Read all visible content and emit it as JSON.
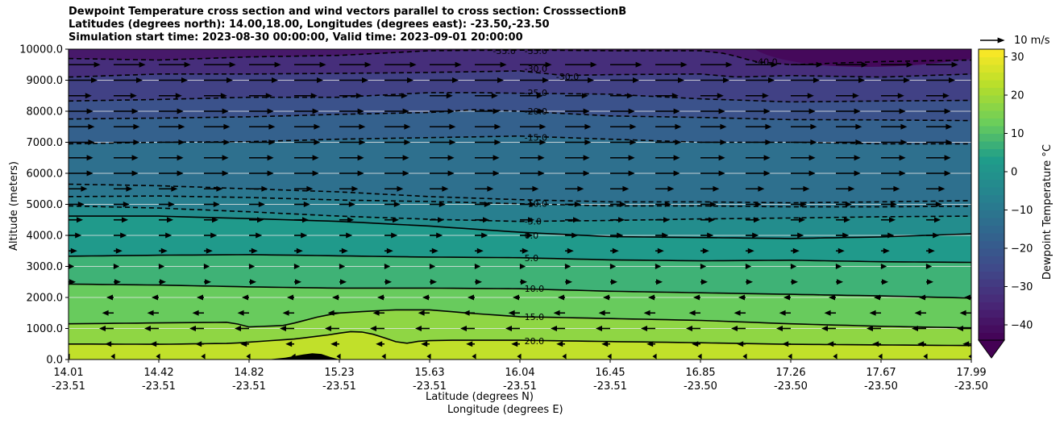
{
  "chart_data": {
    "type": "contour",
    "title_lines": [
      "Dewpoint Temperature cross section and wind vectors parallel to cross section: CrosssectionB",
      "Latitudes (degrees north): 14.00,18.00, Longitudes (degrees east): -23.50,-23.50",
      "Simulation start time: 2023-08-30 00:00:00, Valid time: 2023-09-01 20:00:00"
    ],
    "xlabel_line1": "Latitude (degrees N)",
    "xlabel_line2": "Longitude (degrees E)",
    "ylabel": "Altitude (meters)",
    "ylim": [
      0,
      10000
    ],
    "xlim": [
      0,
      1
    ],
    "x_ticks": [
      {
        "frac": 0.0,
        "lat": "14.01",
        "lon": "-23.51"
      },
      {
        "frac": 0.1,
        "lat": "14.42",
        "lon": "-23.51"
      },
      {
        "frac": 0.2,
        "lat": "14.82",
        "lon": "-23.51"
      },
      {
        "frac": 0.3,
        "lat": "15.23",
        "lon": "-23.51"
      },
      {
        "frac": 0.4,
        "lat": "15.63",
        "lon": "-23.51"
      },
      {
        "frac": 0.5,
        "lat": "16.04",
        "lon": "-23.51"
      },
      {
        "frac": 0.6,
        "lat": "16.45",
        "lon": "-23.51"
      },
      {
        "frac": 0.7,
        "lat": "16.85",
        "lon": "-23.50"
      },
      {
        "frac": 0.8,
        "lat": "17.26",
        "lon": "-23.50"
      },
      {
        "frac": 0.9,
        "lat": "17.67",
        "lon": "-23.50"
      },
      {
        "frac": 1.0,
        "lat": "17.99",
        "lon": "-23.50"
      }
    ],
    "y_ticks": [
      {
        "value": 0,
        "label": "0.0"
      },
      {
        "value": 1000,
        "label": "1000.0"
      },
      {
        "value": 2000,
        "label": "2000.0"
      },
      {
        "value": 3000,
        "label": "3000.0"
      },
      {
        "value": 4000,
        "label": "4000.0"
      },
      {
        "value": 5000,
        "label": "5000.0"
      },
      {
        "value": 6000,
        "label": "6000.0"
      },
      {
        "value": 7000,
        "label": "7000.0"
      },
      {
        "value": 8000,
        "label": "8000.0"
      },
      {
        "value": 9000,
        "label": "9000.0"
      },
      {
        "value": 10000,
        "label": "10000.0"
      }
    ],
    "grid": true,
    "colorbar": {
      "label": "Dewpoint Temperature $^\\circ$C",
      "label_text": "Dewpoint Temperature °C",
      "min": -44,
      "max": 32,
      "extend": "min",
      "ticks": [
        {
          "value": 30,
          "label": "30"
        },
        {
          "value": 20,
          "label": "20"
        },
        {
          "value": 10,
          "label": "10"
        },
        {
          "value": 0,
          "label": "0"
        },
        {
          "value": -10,
          "label": "−10"
        },
        {
          "value": -20,
          "label": "−20"
        },
        {
          "value": -30,
          "label": "−30"
        },
        {
          "value": -40,
          "label": "−40"
        }
      ]
    },
    "contours": [
      {
        "level": "20.0",
        "dashed": false,
        "points": [
          [
            0,
            500
          ],
          [
            0.1,
            490
          ],
          [
            0.18,
            520
          ],
          [
            0.25,
            660
          ],
          [
            0.29,
            800
          ],
          [
            0.31,
            900
          ],
          [
            0.33,
            880
          ],
          [
            0.35,
            700
          ],
          [
            0.37,
            500
          ],
          [
            0.39,
            600
          ],
          [
            0.42,
            620
          ],
          [
            0.5,
            620
          ],
          [
            0.6,
            580
          ],
          [
            0.7,
            540
          ],
          [
            0.8,
            490
          ],
          [
            0.9,
            470
          ],
          [
            1,
            450
          ]
        ],
        "label": {
          "x": 0.5,
          "y": 600
        }
      },
      {
        "level": "15.0",
        "dashed": false,
        "points": [
          [
            0,
            1150
          ],
          [
            0.1,
            1180
          ],
          [
            0.18,
            1200
          ],
          [
            0.2,
            1050
          ],
          [
            0.24,
            1100
          ],
          [
            0.28,
            1400
          ],
          [
            0.3,
            1500
          ],
          [
            0.36,
            1600
          ],
          [
            0.4,
            1600
          ],
          [
            0.45,
            1480
          ],
          [
            0.5,
            1380
          ],
          [
            0.6,
            1320
          ],
          [
            0.7,
            1260
          ],
          [
            0.8,
            1150
          ],
          [
            0.9,
            1070
          ],
          [
            1,
            1020
          ]
        ],
        "label": {
          "x": 0.5,
          "y": 1380
        }
      },
      {
        "level": "10.0",
        "dashed": false,
        "points": [
          [
            0,
            2430
          ],
          [
            0.1,
            2400
          ],
          [
            0.2,
            2340
          ],
          [
            0.3,
            2300
          ],
          [
            0.4,
            2300
          ],
          [
            0.5,
            2280
          ],
          [
            0.6,
            2200
          ],
          [
            0.7,
            2150
          ],
          [
            0.8,
            2100
          ],
          [
            0.9,
            2050
          ],
          [
            1,
            1980
          ]
        ],
        "label": {
          "x": 0.5,
          "y": 2280
        }
      },
      {
        "level": "5.0",
        "dashed": false,
        "points": [
          [
            0,
            3330
          ],
          [
            0.1,
            3360
          ],
          [
            0.2,
            3380
          ],
          [
            0.3,
            3340
          ],
          [
            0.4,
            3300
          ],
          [
            0.5,
            3280
          ],
          [
            0.6,
            3210
          ],
          [
            0.7,
            3180
          ],
          [
            0.8,
            3200
          ],
          [
            0.9,
            3150
          ],
          [
            1,
            3130
          ]
        ],
        "label": {
          "x": 0.5,
          "y": 3270
        }
      },
      {
        "level": "0.0",
        "dashed": false,
        "points": [
          [
            0,
            4620
          ],
          [
            0.1,
            4620
          ],
          [
            0.2,
            4540
          ],
          [
            0.3,
            4450
          ],
          [
            0.4,
            4300
          ],
          [
            0.5,
            4100
          ],
          [
            0.6,
            3960
          ],
          [
            0.7,
            3930
          ],
          [
            0.8,
            3900
          ],
          [
            0.9,
            3950
          ],
          [
            1,
            4050
          ]
        ],
        "label": {
          "x": 0.5,
          "y": 4000
        }
      },
      {
        "level": "-5.0",
        "dashed": true,
        "points": [
          [
            0,
            4950
          ],
          [
            0.1,
            4880
          ],
          [
            0.2,
            4760
          ],
          [
            0.3,
            4620
          ],
          [
            0.4,
            4520
          ],
          [
            0.5,
            4450
          ],
          [
            0.6,
            4480
          ],
          [
            0.7,
            4530
          ],
          [
            0.8,
            4560
          ],
          [
            0.9,
            4600
          ],
          [
            1,
            4620
          ]
        ],
        "label": {
          "x": 0.5,
          "y": 4450
        }
      },
      {
        "level": "-10.0",
        "dashed": true,
        "points": [
          [
            0,
            5250
          ],
          [
            0.1,
            5270
          ],
          [
            0.2,
            5220
          ],
          [
            0.3,
            5140
          ],
          [
            0.4,
            5090
          ],
          [
            0.5,
            5020
          ],
          [
            0.6,
            4950
          ],
          [
            0.7,
            4950
          ],
          [
            0.8,
            4920
          ],
          [
            0.9,
            4920
          ],
          [
            1,
            4940
          ]
        ],
        "label": {
          "x": 0.5,
          "y": 5020
        }
      },
      {
        "level": "-10.0",
        "dashed": true,
        "points": [
          [
            0,
            5650
          ],
          [
            0.1,
            5600
          ],
          [
            0.2,
            5500
          ],
          [
            0.3,
            5400
          ],
          [
            0.4,
            5250
          ],
          [
            0.5,
            5150
          ],
          [
            0.6,
            5080
          ],
          [
            0.7,
            5080
          ],
          [
            0.8,
            5050
          ],
          [
            0.9,
            5080
          ],
          [
            1,
            5120
          ]
        ],
        "label": null
      },
      {
        "level": "-15.0",
        "dashed": true,
        "points": [
          [
            0,
            6950
          ],
          [
            0.1,
            7000
          ],
          [
            0.2,
            7020
          ],
          [
            0.3,
            7100
          ],
          [
            0.4,
            7150
          ],
          [
            0.5,
            7200
          ],
          [
            0.6,
            7100
          ],
          [
            0.7,
            7000
          ],
          [
            0.8,
            7000
          ],
          [
            0.9,
            6950
          ],
          [
            1,
            6950
          ]
        ],
        "label": {
          "x": 0.5,
          "y": 7150
        }
      },
      {
        "level": "-20.0",
        "dashed": true,
        "points": [
          [
            0,
            7750
          ],
          [
            0.1,
            7780
          ],
          [
            0.2,
            7820
          ],
          [
            0.3,
            7900
          ],
          [
            0.4,
            7960
          ],
          [
            0.45,
            8050
          ],
          [
            0.5,
            8000
          ],
          [
            0.6,
            7850
          ],
          [
            0.7,
            7800
          ],
          [
            0.8,
            7730
          ],
          [
            0.9,
            7720
          ],
          [
            1,
            7700
          ]
        ],
        "label": {
          "x": 0.5,
          "y": 8000
        }
      },
      {
        "level": "-25.0",
        "dashed": true,
        "points": [
          [
            0,
            8330
          ],
          [
            0.1,
            8380
          ],
          [
            0.2,
            8450
          ],
          [
            0.3,
            8450
          ],
          [
            0.4,
            8600
          ],
          [
            0.45,
            8600
          ],
          [
            0.5,
            8580
          ],
          [
            0.6,
            8550
          ],
          [
            0.7,
            8400
          ],
          [
            0.8,
            8300
          ],
          [
            0.9,
            8330
          ],
          [
            1,
            8350
          ]
        ],
        "label": {
          "x": 0.5,
          "y": 8600
        }
      },
      {
        "level": "-30.0",
        "dashed": true,
        "points": [
          [
            0,
            9100
          ],
          [
            0.1,
            9200
          ],
          [
            0.2,
            9200
          ],
          [
            0.3,
            9220
          ],
          [
            0.4,
            9250
          ],
          [
            0.5,
            9300
          ],
          [
            0.55,
            9150
          ],
          [
            0.6,
            9180
          ],
          [
            0.7,
            9200
          ],
          [
            0.74,
            9100
          ],
          [
            0.8,
            9150
          ],
          [
            0.9,
            9100
          ],
          [
            1,
            9200
          ]
        ],
        "label": {
          "x": 0.5,
          "y": 9380
        }
      },
      {
        "level": "-35.0",
        "dashed": true,
        "points": [
          [
            0,
            9700
          ],
          [
            0.1,
            9650
          ],
          [
            0.2,
            9750
          ],
          [
            0.3,
            9800
          ],
          [
            0.4,
            9950
          ],
          [
            0.5,
            9970
          ],
          [
            0.6,
            9950
          ],
          [
            0.7,
            9950
          ],
          [
            0.73,
            9850
          ],
          [
            0.76,
            9600
          ],
          [
            0.8,
            9500
          ],
          [
            0.9,
            9600
          ],
          [
            1,
            9650
          ]
        ],
        "label": {
          "x": 0.5,
          "y": 9950
        }
      }
    ],
    "contour_label_extras": [
      {
        "text": "-35.0",
        "x": 0.47,
        "y": 9950
      },
      {
        "text": "-30.0",
        "x": 0.54,
        "y": 9120
      },
      {
        "text": "-40.0",
        "x": 0.76,
        "y": 9600
      }
    ],
    "terrain": [
      [
        0.22,
        0
      ],
      [
        0.24,
        60
      ],
      [
        0.26,
        160
      ],
      [
        0.27,
        200
      ],
      [
        0.28,
        180
      ],
      [
        0.29,
        80
      ],
      [
        0.3,
        0
      ]
    ],
    "wind_vectors": {
      "reference_speed_ms": 10,
      "reference_label": "10 m/s",
      "columns": 21,
      "levels": [
        {
          "alt": 100,
          "u": -1.0
        },
        {
          "alt": 500,
          "u": -3.0
        },
        {
          "alt": 1000,
          "u": -5.0
        },
        {
          "alt": 1500,
          "u": -4.0
        },
        {
          "alt": 2000,
          "u": -2.5
        },
        {
          "alt": 2500,
          "u": 2.5
        },
        {
          "alt": 3000,
          "u": 2.0
        },
        {
          "alt": 3500,
          "u": 3.0
        },
        {
          "alt": 4000,
          "u": 4.5
        },
        {
          "alt": 4500,
          "u": 5.0
        },
        {
          "alt": 5000,
          "u": 5.5
        },
        {
          "alt": 5500,
          "u": 6.5
        },
        {
          "alt": 6000,
          "u": 8.5
        },
        {
          "alt": 6500,
          "u": 8.5
        },
        {
          "alt": 7000,
          "u": 9.0
        },
        {
          "alt": 7500,
          "u": 9.0
        },
        {
          "alt": 8000,
          "u": 8.5
        },
        {
          "alt": 8500,
          "u": 8.0
        },
        {
          "alt": 9000,
          "u": 10.0
        },
        {
          "alt": 9500,
          "u": 11.0
        }
      ]
    },
    "colors": {
      "viridis_stops": [
        "#440154",
        "#482777",
        "#3f4a8a",
        "#31678e",
        "#26838f",
        "#1f9d8a",
        "#6cce5a",
        "#b6de2b",
        "#fee825"
      ]
    }
  }
}
